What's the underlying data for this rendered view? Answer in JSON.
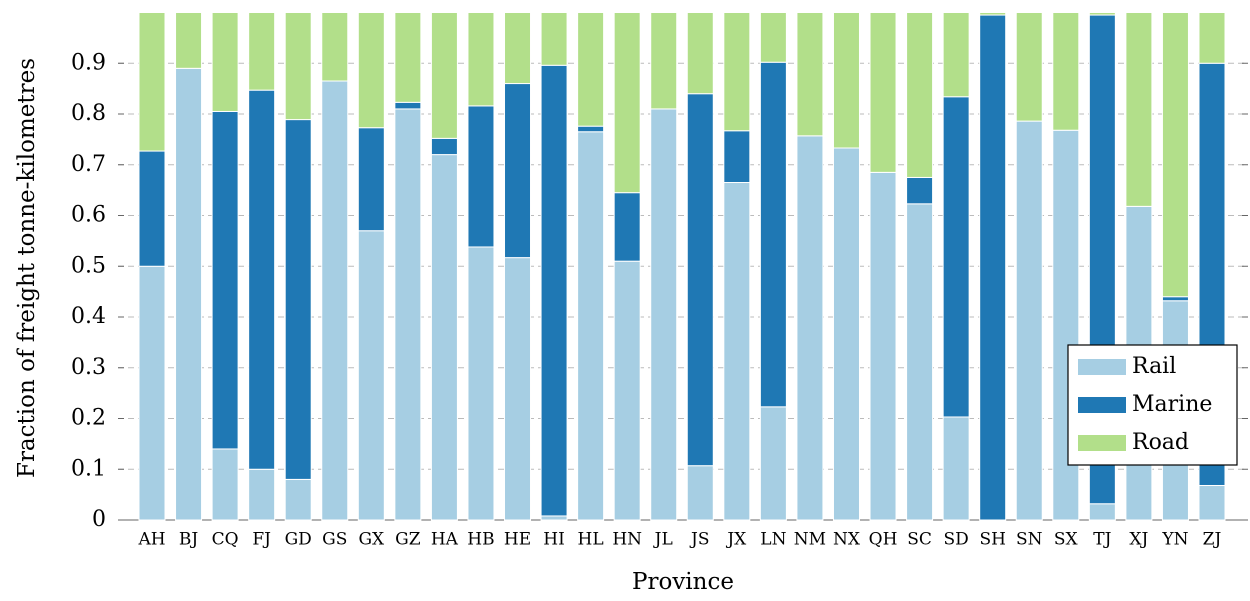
{
  "chart_data": {
    "type": "stacked_bar",
    "xlabel": "Province",
    "ylabel": "Fraction of freight tonne-kilometres",
    "categories": [
      "AH",
      "BJ",
      "CQ",
      "FJ",
      "GD",
      "GS",
      "GX",
      "GZ",
      "HA",
      "HB",
      "HE",
      "HI",
      "HL",
      "HN",
      "JL",
      "JS",
      "JX",
      "LN",
      "NM",
      "NX",
      "QH",
      "SC",
      "SD",
      "SH",
      "SN",
      "SX",
      "TJ",
      "XJ",
      "YN",
      "ZJ"
    ],
    "series": [
      {
        "name": "Rail",
        "color": "#a6cee3",
        "values": [
          0.5,
          0.89,
          0.14,
          0.1,
          0.08,
          0.865,
          0.57,
          0.81,
          0.72,
          0.538,
          0.517,
          0.008,
          0.765,
          0.51,
          0.81,
          0.107,
          0.665,
          0.223,
          0.757,
          0.733,
          0.685,
          0.623,
          0.203,
          0,
          0.786,
          0.768,
          0.032,
          0.618,
          0.432,
          0.068
        ]
      },
      {
        "name": "Marine",
        "color": "#1f78b4",
        "values": [
          0.227,
          0,
          0.665,
          0.747,
          0.709,
          0,
          0.203,
          0.013,
          0.032,
          0.278,
          0.343,
          0.888,
          0.011,
          0.135,
          0,
          0.733,
          0.102,
          0.679,
          0,
          0,
          0,
          0.052,
          0.631,
          0.995,
          0,
          0,
          0.963,
          0,
          0.008,
          0.832
        ]
      },
      {
        "name": "Road",
        "color": "#b2df8a",
        "values": [
          0.273,
          0.11,
          0.195,
          0.153,
          0.211,
          0.135,
          0.227,
          0.177,
          0.248,
          0.184,
          0.14,
          0.104,
          0.224,
          0.355,
          0.19,
          0.16,
          0.233,
          0.098,
          0.243,
          0.267,
          0.315,
          0.325,
          0.166,
          0.005,
          0.214,
          0.232,
          0.005,
          0.382,
          0.56,
          0.1
        ]
      }
    ],
    "ylim": [
      0,
      1
    ],
    "yticks": [
      0,
      0.1,
      0.2,
      0.3,
      0.4,
      0.5,
      0.6,
      0.7,
      0.8,
      0.9
    ],
    "grid": true,
    "legend": "lower right"
  }
}
